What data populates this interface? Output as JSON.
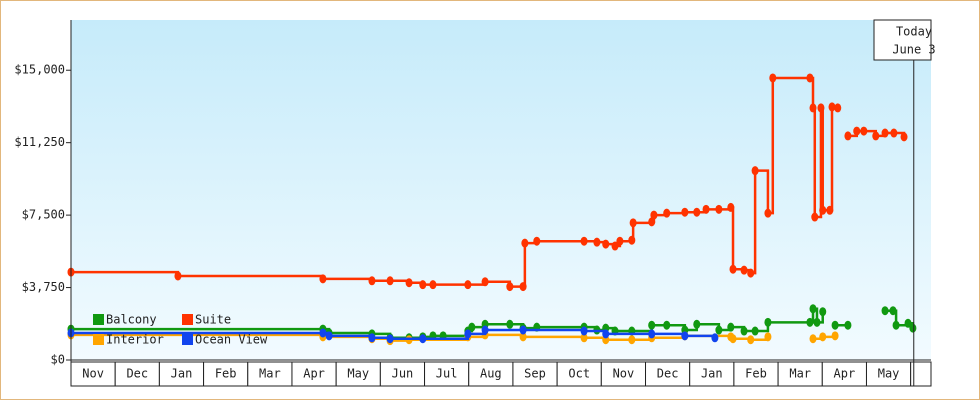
{
  "chart_data": {
    "type": "line",
    "step": true,
    "categories": [
      "Nov",
      "Dec",
      "Jan",
      "Feb",
      "Mar",
      "Apr",
      "May",
      "Jun",
      "Jul",
      "Aug",
      "Sep",
      "Oct",
      "Nov",
      "Dec",
      "Jan",
      "Feb",
      "Mar",
      "Apr",
      "May"
    ],
    "xlim": [
      0,
      19.46
    ],
    "ylim": [
      0,
      17600
    ],
    "yticks": [
      {
        "value": 0,
        "label": "$0"
      },
      {
        "value": 3750,
        "label": "$3,750"
      },
      {
        "value": 7500,
        "label": "$7,500"
      },
      {
        "value": 11250,
        "label": "$11,250"
      },
      {
        "value": 15000,
        "label": "$15,000"
      }
    ],
    "today": {
      "label": "Today",
      "date": "June 3",
      "x": 19.07
    },
    "series": [
      {
        "name": "Balcony",
        "color": "#119911",
        "x": [
          0,
          5.7,
          5.84,
          6.81,
          7.22,
          7.65,
          7.96,
          8.19,
          8.42,
          8.98,
          9.07,
          9.37,
          9.93,
          10.23,
          10.54,
          11.61,
          11.9,
          12.1,
          12.31,
          12.69,
          13.14,
          13.48,
          13.89,
          14.16,
          14.66,
          14.93,
          15.23,
          15.48,
          15.77,
          16.72,
          16.79,
          16.88,
          17.01,
          17.1,
          17.29,
          17.58,
          17.7,
          18.42,
          18.6,
          18.67,
          18.94,
          19.05
        ],
        "values": [
          1600,
          1600,
          1400,
          1350,
          1150,
          1150,
          1200,
          1250,
          1250,
          1500,
          1700,
          1850,
          1850,
          1650,
          1700,
          1700,
          1550,
          1650,
          1500,
          1500,
          1800,
          1800,
          1550,
          1850,
          1550,
          1700,
          1500,
          1500,
          1950,
          1950,
          2650,
          1950,
          2500,
          null,
          1800,
          1800,
          null,
          2550,
          2550,
          1800,
          1900,
          1650
        ]
      },
      {
        "name": "Suite",
        "color": "#ff3300",
        "x": [
          0,
          2.42,
          5.7,
          6.81,
          7.22,
          7.65,
          7.96,
          8.19,
          8.98,
          9.37,
          9.93,
          10.23,
          10.27,
          10.54,
          11.61,
          11.9,
          12.1,
          12.31,
          12.42,
          12.69,
          12.72,
          13.14,
          13.19,
          13.48,
          13.89,
          14.16,
          14.37,
          14.66,
          14.93,
          14.98,
          15.23,
          15.38,
          15.48,
          15.77,
          15.88,
          16.72,
          16.79,
          16.83,
          16.97,
          17.01,
          17.17,
          17.22,
          17.35,
          17.46,
          17.58,
          17.78,
          17.94,
          18.21,
          18.42,
          18.62,
          18.85
        ],
        "values": [
          4550,
          4350,
          4200,
          4100,
          4100,
          4000,
          3900,
          3900,
          3900,
          4050,
          3800,
          3800,
          6050,
          6150,
          6150,
          6100,
          6000,
          5900,
          6150,
          6200,
          7100,
          7150,
          7500,
          7600,
          7650,
          7650,
          7800,
          7800,
          7900,
          4700,
          4650,
          4500,
          9800,
          7600,
          14600,
          14600,
          13050,
          7400,
          13050,
          7750,
          7750,
          13100,
          13050,
          null,
          11600,
          11850,
          11850,
          11600,
          11750,
          11750,
          11550
        ]
      },
      {
        "name": "Interior",
        "color": "#ffa500",
        "x": [
          0,
          5.7,
          6.81,
          7.22,
          7.65,
          8.98,
          9.37,
          10.23,
          11.61,
          12.1,
          12.69,
          13.14,
          13.89,
          14.93,
          14.98,
          15.38,
          15.77,
          16.2,
          16.79,
          17.01,
          17.29
        ],
        "values": [
          1300,
          1200,
          1100,
          1000,
          1050,
          1200,
          1300,
          1200,
          1150,
          1050,
          1050,
          1150,
          1250,
          1200,
          1100,
          1050,
          1200,
          null,
          1100,
          1200,
          1250
        ]
      },
      {
        "name": "Ocean View",
        "color": "#1144ee",
        "x": [
          0,
          5.7,
          5.84,
          6.81,
          7.22,
          7.96,
          8.98,
          9.37,
          10.23,
          11.61,
          12.1,
          13.14,
          13.89,
          14.57
        ],
        "values": [
          1400,
          1400,
          1250,
          1150,
          1100,
          1100,
          1350,
          1550,
          1550,
          1500,
          1350,
          1350,
          1250,
          1150
        ]
      }
    ]
  }
}
